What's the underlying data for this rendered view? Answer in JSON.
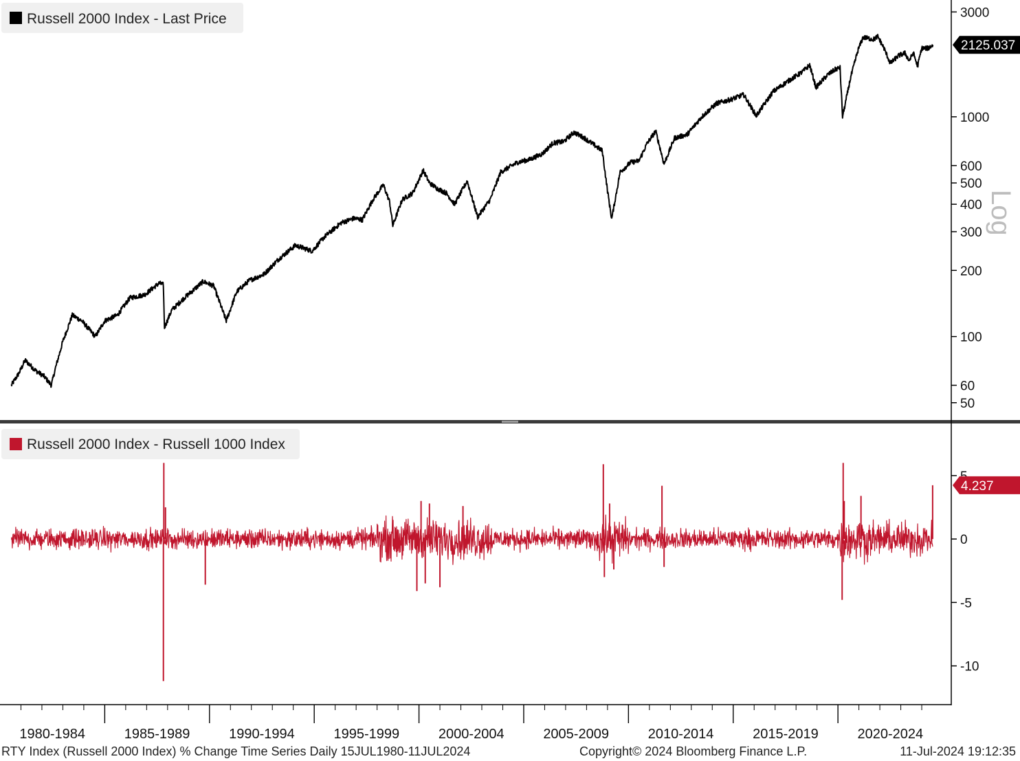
{
  "chart_data": [
    {
      "type": "line",
      "legend": "Russell 2000 Index - Last Price",
      "series_color": "#000000",
      "scale": "log",
      "ylim": [
        42,
        3400
      ],
      "yticks": [
        50,
        60,
        100,
        200,
        300,
        400,
        500,
        600,
        1000,
        3000
      ],
      "ytick_labels": [
        "50",
        "60",
        "100",
        "200",
        "300",
        "400",
        "500",
        "600",
        "1000",
        "3000"
      ],
      "axis_note": "Log",
      "last_value": "2125.037",
      "anchors": [
        [
          1980.54,
          60
        ],
        [
          1980.9,
          68
        ],
        [
          1981.2,
          78
        ],
        [
          1981.7,
          70
        ],
        [
          1982.1,
          66
        ],
        [
          1982.45,
          60
        ],
        [
          1982.65,
          72
        ],
        [
          1983.0,
          95
        ],
        [
          1983.45,
          125
        ],
        [
          1983.9,
          118
        ],
        [
          1984.55,
          100
        ],
        [
          1985.0,
          118
        ],
        [
          1985.6,
          125
        ],
        [
          1986.2,
          150
        ],
        [
          1986.9,
          155
        ],
        [
          1987.6,
          175
        ],
        [
          1987.8,
          172
        ],
        [
          1987.85,
          110
        ],
        [
          1988.2,
          132
        ],
        [
          1988.8,
          150
        ],
        [
          1989.7,
          178
        ],
        [
          1990.2,
          170
        ],
        [
          1990.8,
          118
        ],
        [
          1991.3,
          160
        ],
        [
          1991.9,
          180
        ],
        [
          1992.6,
          192
        ],
        [
          1993.3,
          225
        ],
        [
          1994.1,
          260
        ],
        [
          1994.9,
          245
        ],
        [
          1995.5,
          285
        ],
        [
          1996.3,
          330
        ],
        [
          1996.9,
          345
        ],
        [
          1997.3,
          340
        ],
        [
          1997.8,
          420
        ],
        [
          1998.3,
          490
        ],
        [
          1998.6,
          410
        ],
        [
          1998.75,
          320
        ],
        [
          1999.2,
          420
        ],
        [
          1999.7,
          450
        ],
        [
          2000.2,
          570
        ],
        [
          2000.5,
          500
        ],
        [
          2000.9,
          470
        ],
        [
          2001.3,
          450
        ],
        [
          2001.7,
          400
        ],
        [
          2002.3,
          510
        ],
        [
          2002.8,
          350
        ],
        [
          2003.4,
          420
        ],
        [
          2003.9,
          560
        ],
        [
          2004.7,
          620
        ],
        [
          2005.3,
          640
        ],
        [
          2005.9,
          680
        ],
        [
          2006.4,
          760
        ],
        [
          2006.9,
          770
        ],
        [
          2007.4,
          850
        ],
        [
          2007.9,
          800
        ],
        [
          2008.4,
          740
        ],
        [
          2008.75,
          700
        ],
        [
          2009.0,
          460
        ],
        [
          2009.2,
          343
        ],
        [
          2009.6,
          560
        ],
        [
          2010.1,
          620
        ],
        [
          2010.5,
          630
        ],
        [
          2010.9,
          760
        ],
        [
          2011.3,
          860
        ],
        [
          2011.7,
          610
        ],
        [
          2012.2,
          800
        ],
        [
          2012.8,
          830
        ],
        [
          2013.5,
          1000
        ],
        [
          2014.2,
          1150
        ],
        [
          2014.9,
          1200
        ],
        [
          2015.5,
          1260
        ],
        [
          2016.1,
          1010
        ],
        [
          2016.9,
          1300
        ],
        [
          2017.6,
          1450
        ],
        [
          2018.3,
          1600
        ],
        [
          2018.65,
          1720
        ],
        [
          2018.95,
          1360
        ],
        [
          2019.5,
          1550
        ],
        [
          2019.9,
          1650
        ],
        [
          2020.1,
          1670
        ],
        [
          2020.22,
          1000
        ],
        [
          2020.6,
          1500
        ],
        [
          2020.95,
          2000
        ],
        [
          2021.2,
          2300
        ],
        [
          2021.7,
          2250
        ],
        [
          2021.9,
          2320
        ],
        [
          2022.2,
          2050
        ],
        [
          2022.5,
          1750
        ],
        [
          2022.9,
          1900
        ],
        [
          2023.2,
          1950
        ],
        [
          2023.4,
          1800
        ],
        [
          2023.6,
          1950
        ],
        [
          2023.8,
          1700
        ],
        [
          2024.0,
          2050
        ],
        [
          2024.3,
          2050
        ],
        [
          2024.53,
          2125.037
        ]
      ]
    },
    {
      "type": "line",
      "legend": "Russell 2000 Index - Russell 1000 Index",
      "series_color": "#c0162d",
      "ylim": [
        -13,
        9
      ],
      "yticks": [
        -10,
        -5,
        0,
        5
      ],
      "ytick_labels": [
        "-10",
        "-5",
        "0",
        "5"
      ],
      "last_value": "4.237",
      "spikes": [
        [
          1987.8,
          -11.2
        ],
        [
          1987.82,
          6.0
        ],
        [
          1987.9,
          2.5
        ],
        [
          1989.8,
          -3.6
        ],
        [
          1999.9,
          -4.1
        ],
        [
          2000.1,
          3.0
        ],
        [
          2000.3,
          -3.5
        ],
        [
          2000.5,
          2.8
        ],
        [
          2001.0,
          -3.8
        ],
        [
          2002.1,
          2.6
        ],
        [
          2008.8,
          5.9
        ],
        [
          2008.85,
          -3.0
        ],
        [
          2009.1,
          2.8
        ],
        [
          2009.3,
          -2.4
        ],
        [
          2011.6,
          4.2
        ],
        [
          2011.7,
          -2.2
        ],
        [
          2020.2,
          -4.8
        ],
        [
          2020.25,
          6.0
        ],
        [
          2020.3,
          3.0
        ],
        [
          2021.1,
          3.4
        ],
        [
          2024.52,
          4.237
        ]
      ]
    }
  ],
  "x_axis": {
    "range": [
      1980.0,
      2024.95
    ],
    "period_labels": [
      "1980-1984",
      "1985-1989",
      "1990-1994",
      "1995-1999",
      "2000-2004",
      "2005-2009",
      "2010-2014",
      "2015-2019",
      "2020-2024"
    ]
  },
  "footer": {
    "description": "RTY Index (Russell 2000 Index) % Change Time Series  Daily 15JUL1980-11JUL2024",
    "copyright": "Copyright© 2024 Bloomberg Finance L.P.",
    "timestamp": "11-Jul-2024 19:12:35"
  }
}
